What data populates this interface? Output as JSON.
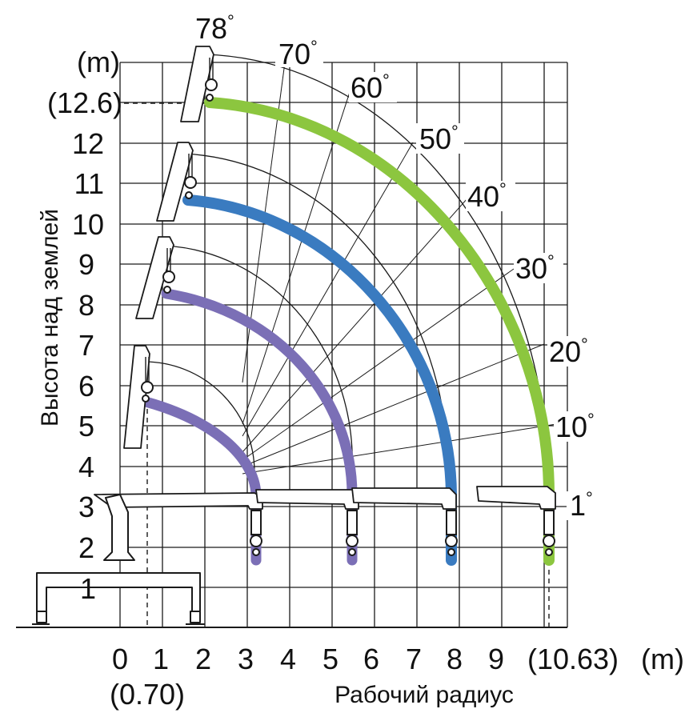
{
  "y_unit": "(m)",
  "y_max_label": "(12.6)",
  "y_label": "Высота над землей",
  "x_unit": "(m)",
  "x_max_label": "(10.63)",
  "x_min_label": "(0.70)",
  "x_label": "Рабочий радиус",
  "y_ticks": [
    "1",
    "2",
    "3",
    "4",
    "5",
    "6",
    "7",
    "8",
    "9",
    "10",
    "11",
    "12"
  ],
  "x_ticks": [
    "0",
    "1",
    "2",
    "3",
    "4",
    "5",
    "6",
    "7",
    "8",
    "9"
  ],
  "angle_labels": [
    "78",
    "70",
    "60",
    "50",
    "40",
    "30",
    "20",
    "10",
    "1"
  ],
  "degree_symbol": "°",
  "colors": {
    "section1": "#7b6fb6",
    "section2": "#7b6fb6",
    "section3": "#3a7bc0",
    "section4": "#8cc63f",
    "grid": "#1a1a1a"
  },
  "chart_data": {
    "type": "line",
    "x_range": [
      0,
      10.63
    ],
    "y_range": [
      0,
      12.6
    ],
    "boom_angle_range_deg": [
      1,
      78
    ],
    "series": [
      {
        "values_x": [
          0.7,
          3.3
        ],
        "values_y": [
          5.6,
          3.3
        ],
        "color": "#7b6fb6"
      },
      {
        "values_x": [
          1.2,
          5.6
        ],
        "values_y": [
          8.3,
          3.3
        ],
        "color": "#7b6fb6"
      },
      {
        "values_x": [
          1.7,
          8.0
        ],
        "values_y": [
          10.6,
          3.3
        ],
        "color": "#3a7bc0"
      },
      {
        "values_x": [
          2.1,
          10.63
        ],
        "values_y": [
          12.6,
          3.3
        ],
        "color": "#8cc63f"
      }
    ]
  }
}
